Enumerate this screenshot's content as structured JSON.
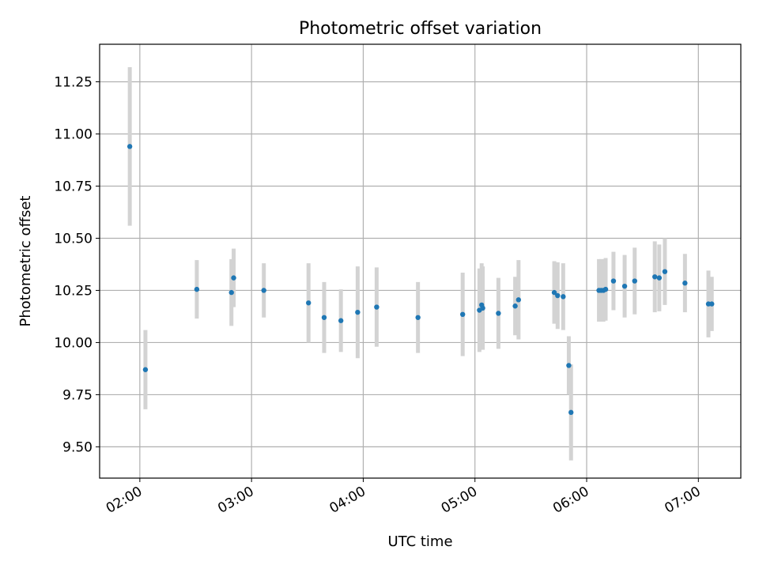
{
  "chart_data": {
    "type": "scatter",
    "title": "Photometric offset variation",
    "xlabel": "UTC time",
    "ylabel": "Photometric offset",
    "x_unit": "time of day (UTC, hours)",
    "xlim": [
      1.64,
      7.38
    ],
    "ylim": [
      9.35,
      11.43
    ],
    "xticks": [
      2,
      3,
      4,
      5,
      6,
      7
    ],
    "xtick_labels": [
      "02:00",
      "03:00",
      "04:00",
      "05:00",
      "06:00",
      "07:00"
    ],
    "yticks": [
      9.5,
      9.75,
      10.0,
      10.25,
      10.5,
      10.75,
      11.0,
      11.25
    ],
    "ytick_labels": [
      "9.50",
      "9.75",
      "10.00",
      "10.25",
      "10.50",
      "10.75",
      "11.00",
      "11.25"
    ],
    "grid": true,
    "point_color": "#1f77b4",
    "errorbar_color": "#d3d3d3",
    "points": [
      {
        "x": 1.91,
        "y": 10.94,
        "err": 0.38
      },
      {
        "x": 2.05,
        "y": 9.87,
        "err": 0.19
      },
      {
        "x": 2.51,
        "y": 10.255,
        "err": 0.14
      },
      {
        "x": 2.82,
        "y": 10.24,
        "err": 0.16
      },
      {
        "x": 2.84,
        "y": 10.31,
        "err": 0.14
      },
      {
        "x": 3.11,
        "y": 10.25,
        "err": 0.13
      },
      {
        "x": 3.51,
        "y": 10.19,
        "err": 0.19
      },
      {
        "x": 3.65,
        "y": 10.12,
        "err": 0.17
      },
      {
        "x": 3.8,
        "y": 10.105,
        "err": 0.15
      },
      {
        "x": 3.95,
        "y": 10.145,
        "err": 0.22
      },
      {
        "x": 4.12,
        "y": 10.17,
        "err": 0.19
      },
      {
        "x": 4.49,
        "y": 10.12,
        "err": 0.17
      },
      {
        "x": 4.89,
        "y": 10.135,
        "err": 0.2
      },
      {
        "x": 5.04,
        "y": 10.155,
        "err": 0.2
      },
      {
        "x": 5.06,
        "y": 10.18,
        "err": 0.2
      },
      {
        "x": 5.07,
        "y": 10.165,
        "err": 0.2
      },
      {
        "x": 5.21,
        "y": 10.14,
        "err": 0.17
      },
      {
        "x": 5.36,
        "y": 10.175,
        "err": 0.14
      },
      {
        "x": 5.39,
        "y": 10.205,
        "err": 0.19
      },
      {
        "x": 5.71,
        "y": 10.24,
        "err": 0.15
      },
      {
        "x": 5.74,
        "y": 10.225,
        "err": 0.16
      },
      {
        "x": 5.79,
        "y": 10.22,
        "err": 0.16
      },
      {
        "x": 5.84,
        "y": 9.89,
        "err": 0.14
      },
      {
        "x": 5.86,
        "y": 9.665,
        "err": 0.23
      },
      {
        "x": 6.11,
        "y": 10.25,
        "err": 0.15
      },
      {
        "x": 6.13,
        "y": 10.25,
        "err": 0.15
      },
      {
        "x": 6.15,
        "y": 10.25,
        "err": 0.15
      },
      {
        "x": 6.17,
        "y": 10.255,
        "err": 0.15
      },
      {
        "x": 6.24,
        "y": 10.295,
        "err": 0.14
      },
      {
        "x": 6.34,
        "y": 10.27,
        "err": 0.15
      },
      {
        "x": 6.43,
        "y": 10.295,
        "err": 0.16
      },
      {
        "x": 6.61,
        "y": 10.315,
        "err": 0.17
      },
      {
        "x": 6.65,
        "y": 10.31,
        "err": 0.16
      },
      {
        "x": 6.7,
        "y": 10.34,
        "err": 0.16
      },
      {
        "x": 6.88,
        "y": 10.285,
        "err": 0.14
      },
      {
        "x": 7.09,
        "y": 10.185,
        "err": 0.16
      },
      {
        "x": 7.12,
        "y": 10.185,
        "err": 0.13
      }
    ]
  }
}
